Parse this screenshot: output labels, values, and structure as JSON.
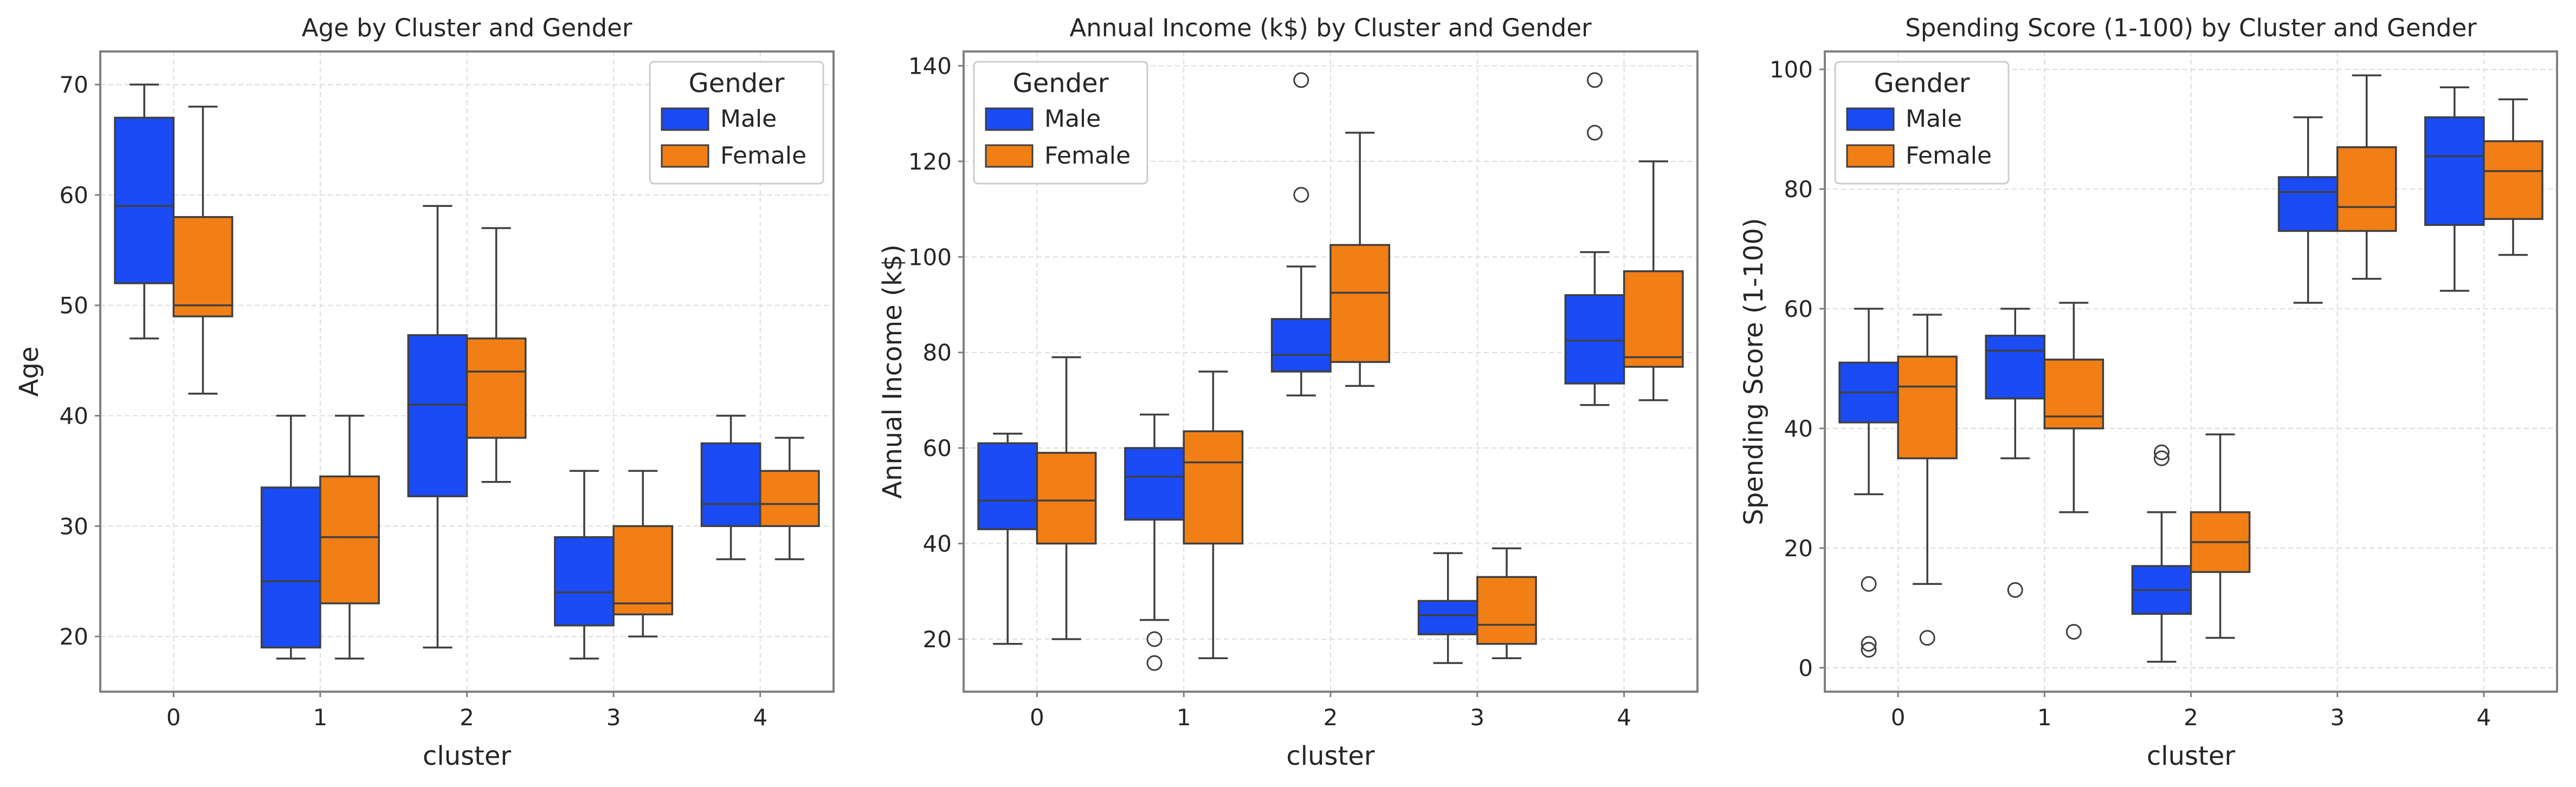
{
  "chart_data": [
    {
      "type": "box",
      "title": "Age by Cluster and Gender",
      "xlabel": "cluster",
      "ylabel": "Age",
      "categories": [
        "0",
        "1",
        "2",
        "3",
        "4"
      ],
      "ylim": [
        15,
        73
      ],
      "yticks": [
        20,
        30,
        40,
        50,
        60,
        70
      ],
      "grid": true,
      "legend": {
        "title": "Gender",
        "position": "top-right"
      },
      "series": [
        {
          "name": "Male",
          "color": "#1a4bf5",
          "boxes": [
            {
              "whislo": 47,
              "q1": 52,
              "med": 59,
              "q3": 67,
              "whishi": 70,
              "fliers": []
            },
            {
              "whislo": 18,
              "q1": 19,
              "med": 25,
              "q3": 33.5,
              "whishi": 40,
              "fliers": []
            },
            {
              "whislo": 19,
              "q1": 32.7,
              "med": 41,
              "q3": 47.3,
              "whishi": 59,
              "fliers": []
            },
            {
              "whislo": 18,
              "q1": 21,
              "med": 24,
              "q3": 29,
              "whishi": 35,
              "fliers": []
            },
            {
              "whislo": 27,
              "q1": 30,
              "med": 32,
              "q3": 37.5,
              "whishi": 40,
              "fliers": []
            }
          ]
        },
        {
          "name": "Female",
          "color": "#f17f16",
          "boxes": [
            {
              "whislo": 42,
              "q1": 49,
              "med": 50,
              "q3": 58,
              "whishi": 68,
              "fliers": []
            },
            {
              "whislo": 18,
              "q1": 23,
              "med": 29,
              "q3": 34.5,
              "whishi": 40,
              "fliers": []
            },
            {
              "whislo": 34,
              "q1": 38,
              "med": 44,
              "q3": 47,
              "whishi": 57,
              "fliers": []
            },
            {
              "whislo": 20,
              "q1": 22,
              "med": 23,
              "q3": 30,
              "whishi": 35,
              "fliers": []
            },
            {
              "whislo": 27,
              "q1": 30,
              "med": 32,
              "q3": 35,
              "whishi": 38,
              "fliers": []
            }
          ]
        }
      ]
    },
    {
      "type": "box",
      "title": "Annual Income (k$) by Cluster and Gender",
      "xlabel": "cluster",
      "ylabel": "Annual Income (k$)",
      "categories": [
        "0",
        "1",
        "2",
        "3",
        "4"
      ],
      "ylim": [
        9,
        143
      ],
      "yticks": [
        20,
        40,
        60,
        80,
        100,
        120,
        140
      ],
      "grid": true,
      "legend": {
        "title": "Gender",
        "position": "top-left"
      },
      "series": [
        {
          "name": "Male",
          "color": "#1a4bf5",
          "boxes": [
            {
              "whislo": 19,
              "q1": 43,
              "med": 49,
              "q3": 61,
              "whishi": 63,
              "fliers": []
            },
            {
              "whislo": 24,
              "q1": 45,
              "med": 54,
              "q3": 60,
              "whishi": 67,
              "fliers": [
                20,
                15
              ]
            },
            {
              "whislo": 71,
              "q1": 76,
              "med": 79.5,
              "q3": 87,
              "whishi": 98,
              "fliers": [
                137,
                113
              ]
            },
            {
              "whislo": 15,
              "q1": 21,
              "med": 25,
              "q3": 28,
              "whishi": 38,
              "fliers": []
            },
            {
              "whislo": 69,
              "q1": 73.5,
              "med": 82.5,
              "q3": 92,
              "whishi": 101,
              "fliers": [
                137,
                126
              ]
            }
          ]
        },
        {
          "name": "Female",
          "color": "#f17f16",
          "boxes": [
            {
              "whislo": 20,
              "q1": 40,
              "med": 49,
              "q3": 59,
              "whishi": 79,
              "fliers": []
            },
            {
              "whislo": 16,
              "q1": 40,
              "med": 57,
              "q3": 63.5,
              "whishi": 76,
              "fliers": []
            },
            {
              "whislo": 73,
              "q1": 78,
              "med": 92.5,
              "q3": 102.5,
              "whishi": 126,
              "fliers": []
            },
            {
              "whislo": 16,
              "q1": 19,
              "med": 23,
              "q3": 33,
              "whishi": 39,
              "fliers": []
            },
            {
              "whislo": 70,
              "q1": 77,
              "med": 79,
              "q3": 97,
              "whishi": 120,
              "fliers": []
            }
          ]
        }
      ]
    },
    {
      "type": "box",
      "title": "Spending Score (1-100) by Cluster and Gender",
      "xlabel": "cluster",
      "ylabel": "Spending Score (1-100)",
      "categories": [
        "0",
        "1",
        "2",
        "3",
        "4"
      ],
      "ylim": [
        -4,
        103
      ],
      "yticks": [
        0,
        20,
        40,
        60,
        80,
        100
      ],
      "grid": true,
      "legend": {
        "title": "Gender",
        "position": "top-left"
      },
      "series": [
        {
          "name": "Male",
          "color": "#1a4bf5",
          "boxes": [
            {
              "whislo": 29,
              "q1": 41,
              "med": 46,
              "q3": 51,
              "whishi": 60,
              "fliers": [
                14,
                4,
                3
              ]
            },
            {
              "whislo": 35,
              "q1": 45,
              "med": 53,
              "q3": 55.5,
              "whishi": 60,
              "fliers": [
                13
              ]
            },
            {
              "whislo": 1,
              "q1": 9,
              "med": 13,
              "q3": 17,
              "whishi": 26,
              "fliers": [
                36,
                35
              ]
            },
            {
              "whislo": 61,
              "q1": 73,
              "med": 79.5,
              "q3": 82,
              "whishi": 92,
              "fliers": []
            },
            {
              "whislo": 63,
              "q1": 74,
              "med": 85.5,
              "q3": 92,
              "whishi": 97,
              "fliers": []
            }
          ]
        },
        {
          "name": "Female",
          "color": "#f17f16",
          "boxes": [
            {
              "whislo": 14,
              "q1": 35,
              "med": 47,
              "q3": 52,
              "whishi": 59,
              "fliers": [
                5
              ]
            },
            {
              "whislo": 26,
              "q1": 40,
              "med": 42,
              "q3": 51.5,
              "whishi": 61,
              "fliers": [
                6
              ]
            },
            {
              "whislo": 5,
              "q1": 16,
              "med": 21,
              "q3": 26,
              "whishi": 39,
              "fliers": []
            },
            {
              "whislo": 65,
              "q1": 73,
              "med": 77,
              "q3": 87,
              "whishi": 99,
              "fliers": []
            },
            {
              "whislo": 69,
              "q1": 75,
              "med": 83,
              "q3": 88,
              "whishi": 95,
              "fliers": []
            }
          ]
        }
      ]
    }
  ]
}
